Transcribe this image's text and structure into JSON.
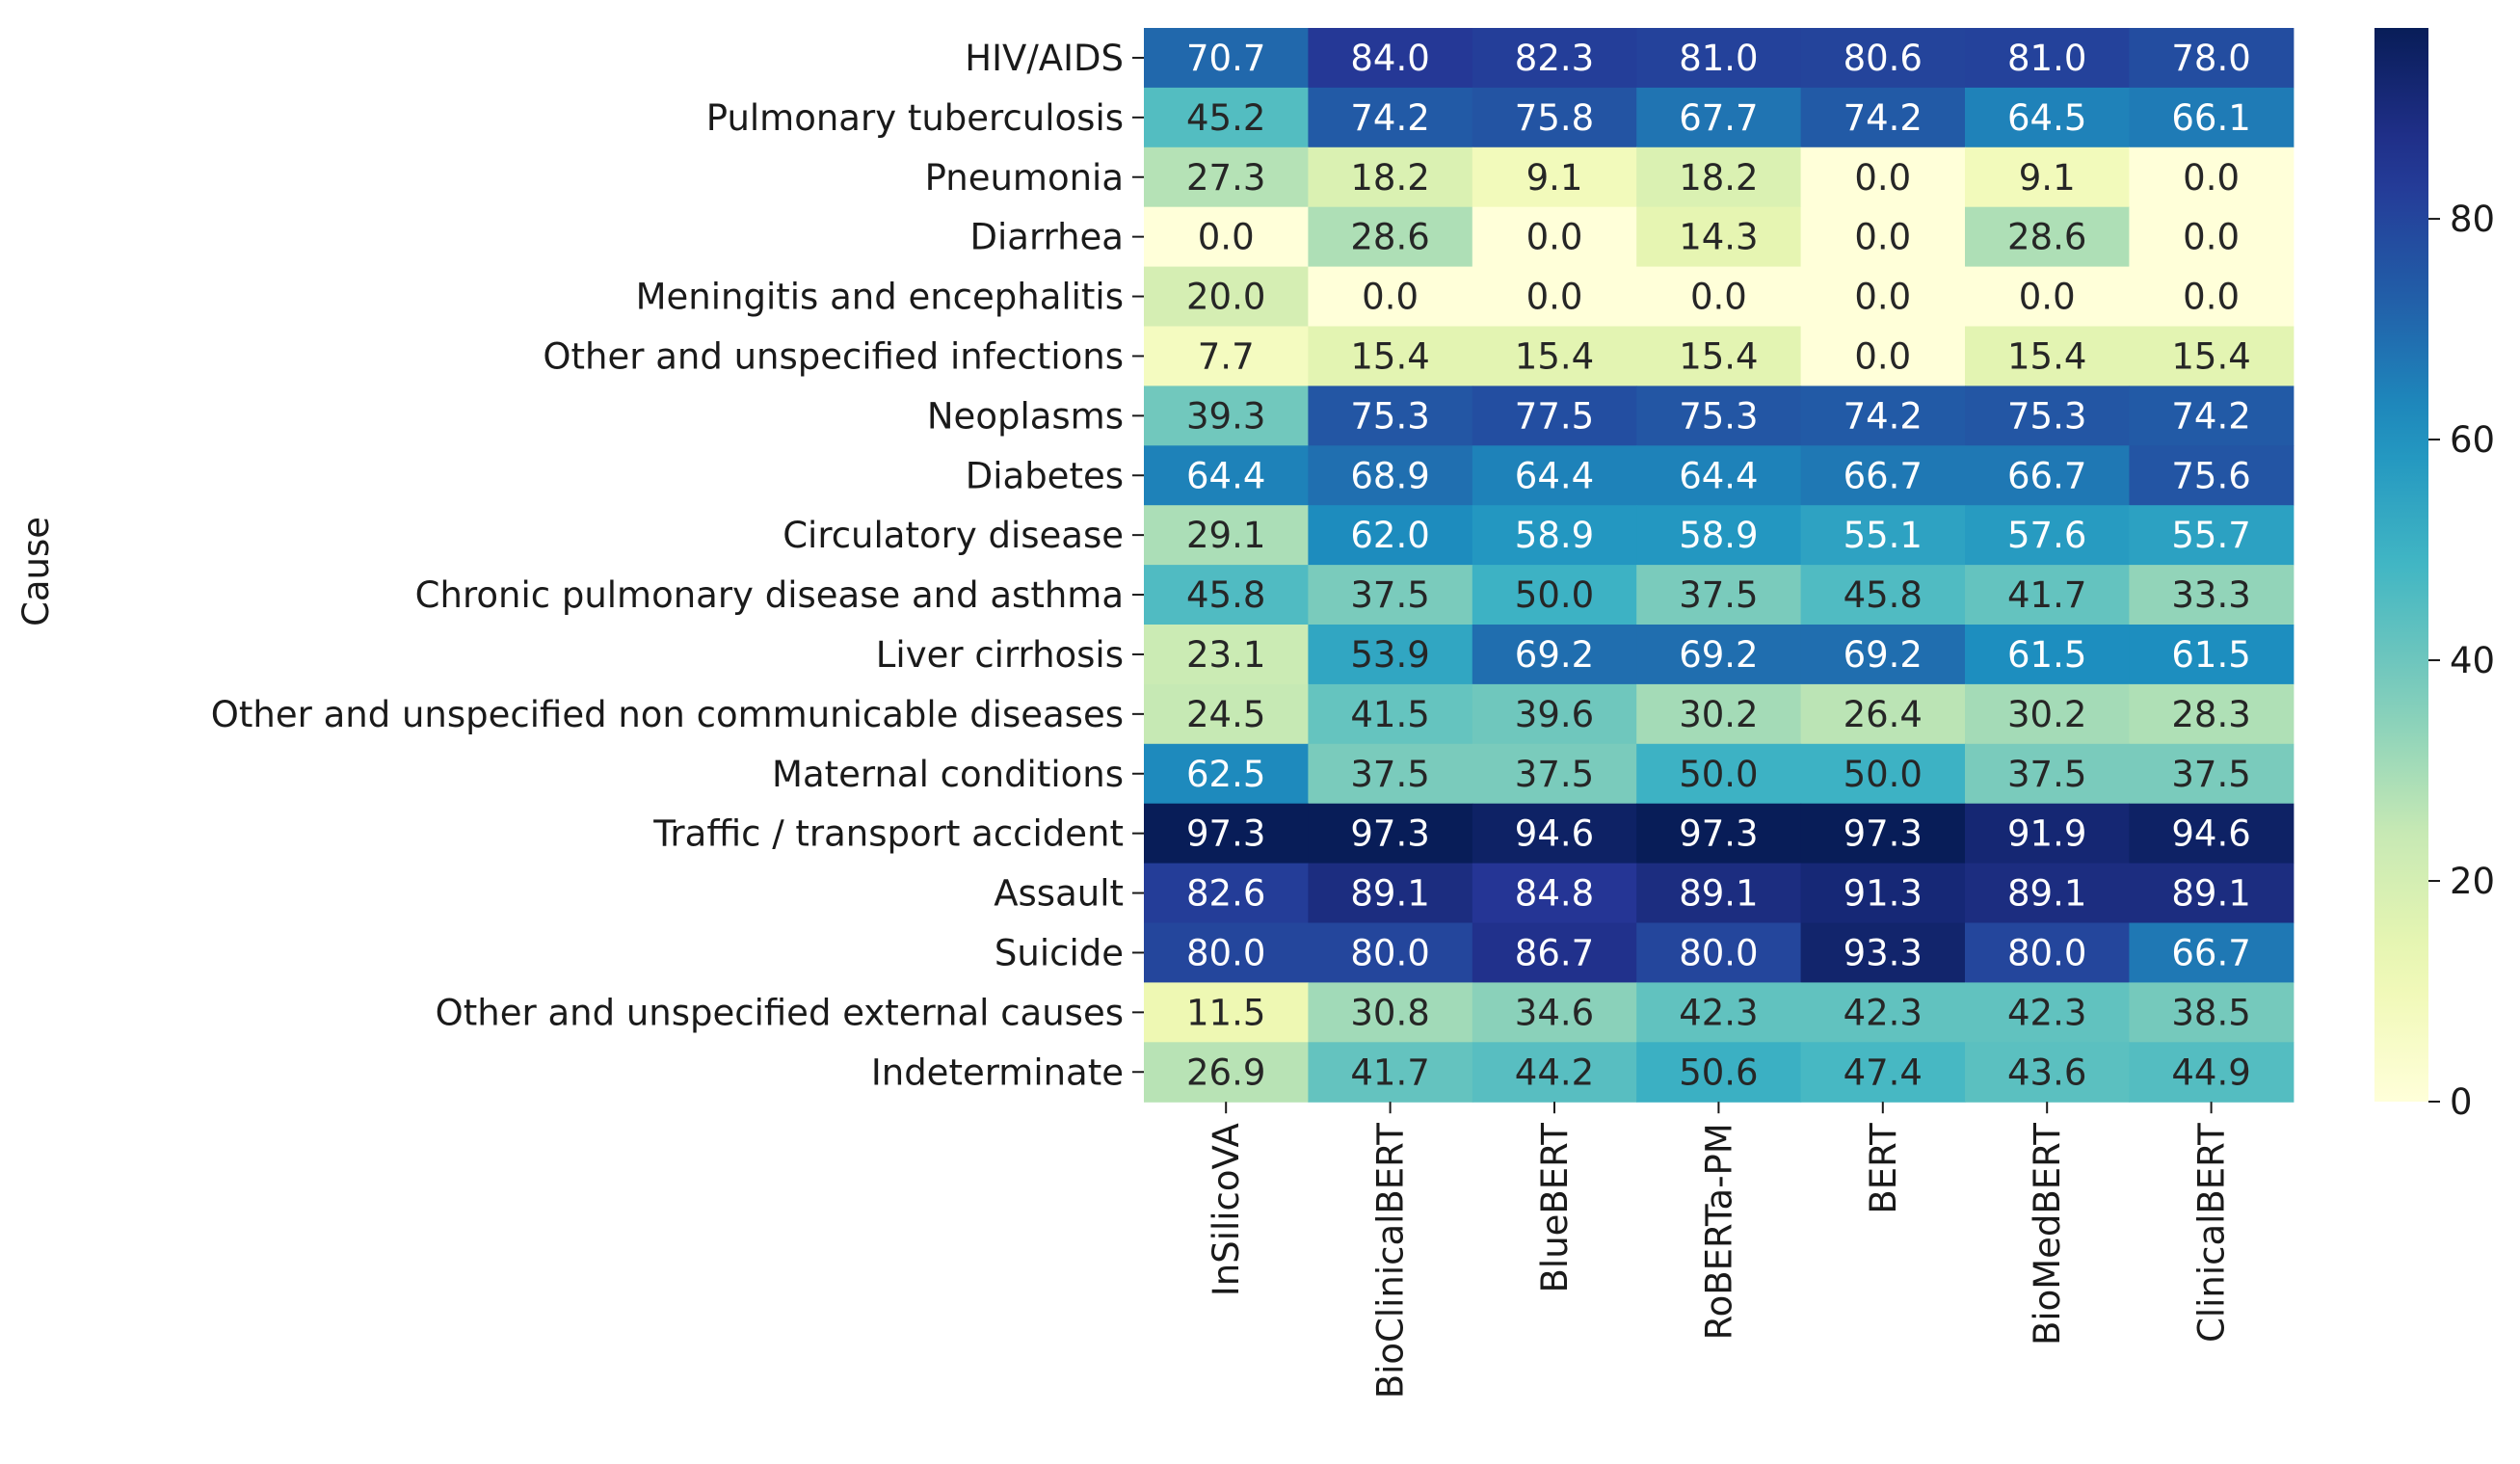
{
  "chart_data": {
    "type": "heatmap",
    "title": "",
    "xlabel": "",
    "ylabel": "Cause",
    "colormap": "YlGnBu",
    "colorbar_range": [
      0,
      97.3
    ],
    "colorbar_ticks": [
      0,
      20,
      40,
      60,
      80
    ],
    "columns": [
      "InSilicoVA",
      "BioClinicalBERT",
      "BlueBERT",
      "RoBERTa-PM",
      "BERT",
      "BioMedBERT",
      "ClinicalBERT"
    ],
    "rows": [
      "HIV/AIDS",
      "Pulmonary tuberculosis",
      "Pneumonia",
      "Diarrhea",
      "Meningitis and encephalitis",
      "Other and unspecified infections",
      "Neoplasms",
      "Diabetes",
      "Circulatory disease",
      "Chronic pulmonary disease and asthma",
      "Liver cirrhosis",
      "Other and unspecified non communicable diseases",
      "Maternal conditions",
      "Traffic / transport accident",
      "Assault",
      "Suicide",
      "Other and unspecified external causes",
      "Indeterminate"
    ],
    "values": [
      [
        70.7,
        84.0,
        82.3,
        81.0,
        80.6,
        81.0,
        78.0
      ],
      [
        45.2,
        74.2,
        75.8,
        67.7,
        74.2,
        64.5,
        66.1
      ],
      [
        27.3,
        18.2,
        9.1,
        18.2,
        0.0,
        9.1,
        0.0
      ],
      [
        0.0,
        28.6,
        0.0,
        14.3,
        0.0,
        28.6,
        0.0
      ],
      [
        20.0,
        0.0,
        0.0,
        0.0,
        0.0,
        0.0,
        0.0
      ],
      [
        7.7,
        15.4,
        15.4,
        15.4,
        0.0,
        15.4,
        15.4
      ],
      [
        39.3,
        75.3,
        77.5,
        75.3,
        74.2,
        75.3,
        74.2
      ],
      [
        64.4,
        68.9,
        64.4,
        64.4,
        66.7,
        66.7,
        75.6
      ],
      [
        29.1,
        62.0,
        58.9,
        58.9,
        55.1,
        57.6,
        55.7
      ],
      [
        45.8,
        37.5,
        50.0,
        37.5,
        45.8,
        41.7,
        33.3
      ],
      [
        23.1,
        53.9,
        69.2,
        69.2,
        69.2,
        61.5,
        61.5
      ],
      [
        24.5,
        41.5,
        39.6,
        30.2,
        26.4,
        30.2,
        28.3
      ],
      [
        62.5,
        37.5,
        37.5,
        50.0,
        50.0,
        37.5,
        37.5
      ],
      [
        97.3,
        97.3,
        94.6,
        97.3,
        97.3,
        91.9,
        94.6
      ],
      [
        82.6,
        89.1,
        84.8,
        89.1,
        91.3,
        89.1,
        89.1
      ],
      [
        80.0,
        80.0,
        86.7,
        80.0,
        93.3,
        80.0,
        66.7
      ],
      [
        11.5,
        30.8,
        34.6,
        42.3,
        42.3,
        42.3,
        38.5
      ],
      [
        26.9,
        41.7,
        44.2,
        50.6,
        47.4,
        43.6,
        44.9
      ]
    ]
  }
}
